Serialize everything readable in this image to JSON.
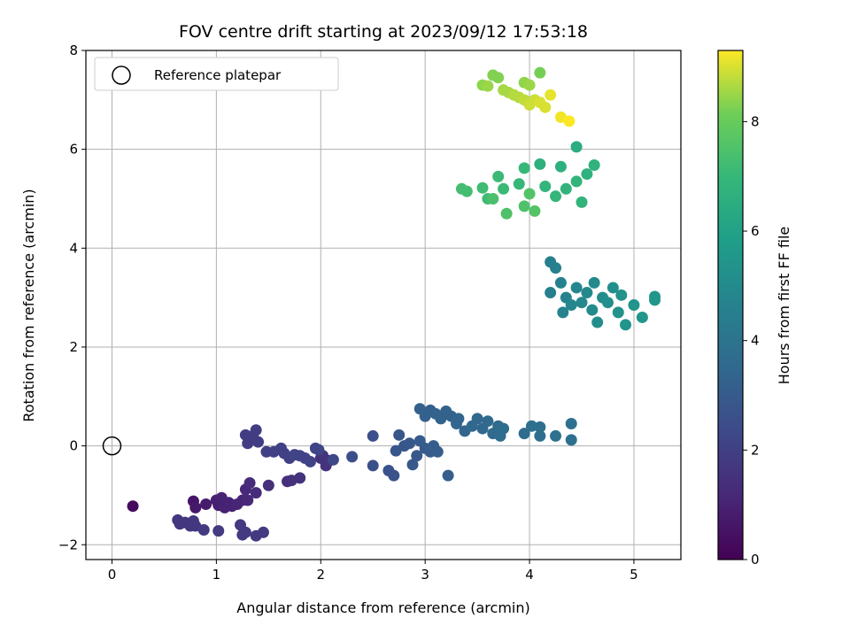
{
  "chart_data": {
    "type": "scatter",
    "title": "FOV centre drift starting at 2023/09/12 17:53:18",
    "xlabel": "Angular distance from reference (arcmin)",
    "ylabel": "Rotation from reference (arcmin)",
    "xlim": [
      -0.25,
      5.45
    ],
    "ylim": [
      -2.3,
      8.0
    ],
    "xticks": [
      0,
      1,
      2,
      3,
      4,
      5
    ],
    "yticks": [
      -2,
      0,
      2,
      4,
      6,
      8
    ],
    "grid": true,
    "legend": {
      "placement": "top-left",
      "entries": [
        "Reference platepar"
      ]
    },
    "reference_point": {
      "x": 0,
      "y": 0,
      "marker": "open-circle"
    },
    "colorbar": {
      "label": "Hours from first FF file",
      "colormap": "viridis",
      "range": [
        0,
        9.3
      ],
      "ticks": [
        0,
        2,
        4,
        6,
        8
      ]
    },
    "series": [
      {
        "color_by": "hours",
        "points": [
          {
            "x": 0.2,
            "y": -1.22,
            "h": 0.3
          },
          {
            "x": 0.78,
            "y": -1.12,
            "h": 0.6
          },
          {
            "x": 0.8,
            "y": -1.25,
            "h": 0.7
          },
          {
            "x": 0.9,
            "y": -1.18,
            "h": 0.8
          },
          {
            "x": 1.0,
            "y": -1.1,
            "h": 0.9
          },
          {
            "x": 1.02,
            "y": -1.2,
            "h": 0.9
          },
          {
            "x": 1.05,
            "y": -1.05,
            "h": 1.0
          },
          {
            "x": 1.08,
            "y": -1.25,
            "h": 1.0
          },
          {
            "x": 1.12,
            "y": -1.15,
            "h": 1.0
          },
          {
            "x": 1.15,
            "y": -1.22,
            "h": 1.0
          },
          {
            "x": 1.2,
            "y": -1.18,
            "h": 1.1
          },
          {
            "x": 1.25,
            "y": -1.1,
            "h": 1.1
          },
          {
            "x": 1.28,
            "y": -0.88,
            "h": 1.2
          },
          {
            "x": 1.3,
            "y": -1.1,
            "h": 1.2
          },
          {
            "x": 1.32,
            "y": -0.75,
            "h": 1.3
          },
          {
            "x": 1.38,
            "y": -0.95,
            "h": 1.3
          },
          {
            "x": 1.5,
            "y": -0.8,
            "h": 1.4
          },
          {
            "x": 1.68,
            "y": -0.72,
            "h": 1.4
          },
          {
            "x": 1.72,
            "y": -0.7,
            "h": 1.5
          },
          {
            "x": 1.8,
            "y": -0.65,
            "h": 1.5
          },
          {
            "x": 2.0,
            "y": -0.25,
            "h": 1.5
          },
          {
            "x": 2.02,
            "y": -0.2,
            "h": 1.5
          },
          {
            "x": 2.05,
            "y": -0.4,
            "h": 1.5
          },
          {
            "x": 2.08,
            "y": -0.3,
            "h": 1.6
          },
          {
            "x": 0.63,
            "y": -1.5,
            "h": 1.7
          },
          {
            "x": 0.65,
            "y": -1.58,
            "h": 1.7
          },
          {
            "x": 0.7,
            "y": -1.55,
            "h": 1.7
          },
          {
            "x": 0.75,
            "y": -1.62,
            "h": 1.7
          },
          {
            "x": 0.78,
            "y": -1.52,
            "h": 1.7
          },
          {
            "x": 0.8,
            "y": -1.62,
            "h": 1.7
          },
          {
            "x": 0.88,
            "y": -1.7,
            "h": 1.8
          },
          {
            "x": 1.02,
            "y": -1.72,
            "h": 1.8
          },
          {
            "x": 1.23,
            "y": -1.6,
            "h": 1.8
          },
          {
            "x": 1.25,
            "y": -1.8,
            "h": 1.8
          },
          {
            "x": 1.28,
            "y": -1.75,
            "h": 1.8
          },
          {
            "x": 1.38,
            "y": -1.82,
            "h": 1.8
          },
          {
            "x": 1.45,
            "y": -1.75,
            "h": 1.8
          },
          {
            "x": 1.28,
            "y": 0.22,
            "h": 1.9
          },
          {
            "x": 1.3,
            "y": 0.05,
            "h": 1.9
          },
          {
            "x": 1.35,
            "y": 0.2,
            "h": 1.9
          },
          {
            "x": 1.4,
            "y": 0.08,
            "h": 1.9
          },
          {
            "x": 1.38,
            "y": 0.32,
            "h": 1.9
          },
          {
            "x": 1.48,
            "y": -0.12,
            "h": 2.0
          },
          {
            "x": 1.55,
            "y": -0.12,
            "h": 2.0
          },
          {
            "x": 1.62,
            "y": -0.05,
            "h": 2.0
          },
          {
            "x": 1.65,
            "y": -0.15,
            "h": 2.0
          },
          {
            "x": 1.7,
            "y": -0.25,
            "h": 2.0
          },
          {
            "x": 1.75,
            "y": -0.18,
            "h": 2.1
          },
          {
            "x": 1.8,
            "y": -0.2,
            "h": 2.1
          },
          {
            "x": 1.85,
            "y": -0.25,
            "h": 2.1
          },
          {
            "x": 1.9,
            "y": -0.32,
            "h": 2.1
          },
          {
            "x": 1.95,
            "y": -0.05,
            "h": 2.2
          },
          {
            "x": 1.98,
            "y": -0.08,
            "h": 2.2
          },
          {
            "x": 2.12,
            "y": -0.28,
            "h": 2.3
          },
          {
            "x": 2.3,
            "y": -0.22,
            "h": 2.5
          },
          {
            "x": 2.5,
            "y": 0.2,
            "h": 2.6
          },
          {
            "x": 2.5,
            "y": -0.4,
            "h": 2.6
          },
          {
            "x": 2.65,
            "y": -0.5,
            "h": 2.7
          },
          {
            "x": 2.7,
            "y": -0.6,
            "h": 2.7
          },
          {
            "x": 2.72,
            "y": -0.1,
            "h": 2.8
          },
          {
            "x": 2.75,
            "y": 0.22,
            "h": 2.8
          },
          {
            "x": 2.8,
            "y": 0.0,
            "h": 2.8
          },
          {
            "x": 2.85,
            "y": 0.05,
            "h": 2.9
          },
          {
            "x": 2.88,
            "y": -0.38,
            "h": 2.9
          },
          {
            "x": 2.92,
            "y": -0.2,
            "h": 2.9
          },
          {
            "x": 2.95,
            "y": 0.1,
            "h": 3.0
          },
          {
            "x": 3.0,
            "y": -0.05,
            "h": 3.0
          },
          {
            "x": 3.05,
            "y": -0.12,
            "h": 3.0
          },
          {
            "x": 3.08,
            "y": 0.0,
            "h": 3.1
          },
          {
            "x": 3.12,
            "y": -0.12,
            "h": 3.1
          },
          {
            "x": 3.22,
            "y": -0.6,
            "h": 3.1
          },
          {
            "x": 2.95,
            "y": 0.75,
            "h": 3.2
          },
          {
            "x": 3.0,
            "y": 0.6,
            "h": 3.2
          },
          {
            "x": 3.05,
            "y": 0.72,
            "h": 3.2
          },
          {
            "x": 3.1,
            "y": 0.65,
            "h": 3.3
          },
          {
            "x": 3.15,
            "y": 0.55,
            "h": 3.3
          },
          {
            "x": 3.2,
            "y": 0.7,
            "h": 3.3
          },
          {
            "x": 3.25,
            "y": 0.6,
            "h": 3.3
          },
          {
            "x": 3.3,
            "y": 0.45,
            "h": 3.4
          },
          {
            "x": 3.32,
            "y": 0.55,
            "h": 3.4
          },
          {
            "x": 3.38,
            "y": 0.3,
            "h": 3.4
          },
          {
            "x": 3.45,
            "y": 0.4,
            "h": 3.5
          },
          {
            "x": 3.5,
            "y": 0.55,
            "h": 3.5
          },
          {
            "x": 3.55,
            "y": 0.35,
            "h": 3.5
          },
          {
            "x": 3.6,
            "y": 0.5,
            "h": 3.6
          },
          {
            "x": 3.65,
            "y": 0.25,
            "h": 3.6
          },
          {
            "x": 3.7,
            "y": 0.4,
            "h": 3.6
          },
          {
            "x": 3.72,
            "y": 0.2,
            "h": 3.7
          },
          {
            "x": 3.75,
            "y": 0.35,
            "h": 3.7
          },
          {
            "x": 3.95,
            "y": 0.25,
            "h": 3.7
          },
          {
            "x": 4.02,
            "y": 0.4,
            "h": 3.8
          },
          {
            "x": 4.1,
            "y": 0.2,
            "h": 3.8
          },
          {
            "x": 4.1,
            "y": 0.38,
            "h": 3.8
          },
          {
            "x": 4.25,
            "y": 0.2,
            "h": 3.9
          },
          {
            "x": 4.4,
            "y": 0.45,
            "h": 3.9
          },
          {
            "x": 4.4,
            "y": 0.12,
            "h": 3.9
          },
          {
            "x": 4.2,
            "y": 3.72,
            "h": 4.5
          },
          {
            "x": 4.2,
            "y": 3.1,
            "h": 4.5
          },
          {
            "x": 4.25,
            "y": 3.6,
            "h": 4.6
          },
          {
            "x": 4.3,
            "y": 3.3,
            "h": 4.6
          },
          {
            "x": 4.35,
            "y": 3.0,
            "h": 4.7
          },
          {
            "x": 4.32,
            "y": 2.7,
            "h": 4.7
          },
          {
            "x": 4.4,
            "y": 2.85,
            "h": 4.8
          },
          {
            "x": 4.45,
            "y": 3.2,
            "h": 4.8
          },
          {
            "x": 4.5,
            "y": 2.9,
            "h": 4.9
          },
          {
            "x": 4.55,
            "y": 3.1,
            "h": 4.9
          },
          {
            "x": 4.6,
            "y": 2.75,
            "h": 5.0
          },
          {
            "x": 4.62,
            "y": 3.3,
            "h": 5.0
          },
          {
            "x": 4.65,
            "y": 2.5,
            "h": 5.1
          },
          {
            "x": 4.7,
            "y": 3.0,
            "h": 5.1
          },
          {
            "x": 4.75,
            "y": 2.9,
            "h": 5.2
          },
          {
            "x": 4.8,
            "y": 3.2,
            "h": 5.2
          },
          {
            "x": 4.85,
            "y": 2.7,
            "h": 5.3
          },
          {
            "x": 4.88,
            "y": 3.05,
            "h": 5.3
          },
          {
            "x": 4.92,
            "y": 2.45,
            "h": 5.4
          },
          {
            "x": 5.0,
            "y": 2.85,
            "h": 5.4
          },
          {
            "x": 5.08,
            "y": 2.6,
            "h": 5.5
          },
          {
            "x": 5.2,
            "y": 2.95,
            "h": 5.5
          },
          {
            "x": 5.2,
            "y": 3.02,
            "h": 5.5
          },
          {
            "x": 4.45,
            "y": 6.05,
            "h": 6.5
          },
          {
            "x": 4.3,
            "y": 5.65,
            "h": 6.6
          },
          {
            "x": 4.1,
            "y": 5.7,
            "h": 6.6
          },
          {
            "x": 4.62,
            "y": 5.68,
            "h": 6.7
          },
          {
            "x": 4.55,
            "y": 5.5,
            "h": 6.7
          },
          {
            "x": 4.45,
            "y": 5.35,
            "h": 6.8
          },
          {
            "x": 4.35,
            "y": 5.2,
            "h": 6.8
          },
          {
            "x": 4.5,
            "y": 4.93,
            "h": 6.8
          },
          {
            "x": 4.25,
            "y": 5.05,
            "h": 6.9
          },
          {
            "x": 4.15,
            "y": 5.25,
            "h": 6.9
          },
          {
            "x": 3.95,
            "y": 5.62,
            "h": 7.0
          },
          {
            "x": 3.9,
            "y": 5.3,
            "h": 7.0
          },
          {
            "x": 3.75,
            "y": 5.2,
            "h": 7.1
          },
          {
            "x": 3.7,
            "y": 5.45,
            "h": 7.1
          },
          {
            "x": 3.6,
            "y": 5.0,
            "h": 7.2
          },
          {
            "x": 3.55,
            "y": 5.22,
            "h": 7.2
          },
          {
            "x": 3.4,
            "y": 5.15,
            "h": 7.3
          },
          {
            "x": 3.35,
            "y": 5.2,
            "h": 7.3
          },
          {
            "x": 3.65,
            "y": 5.0,
            "h": 7.4
          },
          {
            "x": 3.78,
            "y": 4.7,
            "h": 7.5
          },
          {
            "x": 3.95,
            "y": 4.85,
            "h": 7.5
          },
          {
            "x": 4.05,
            "y": 4.75,
            "h": 7.6
          },
          {
            "x": 4.0,
            "y": 5.1,
            "h": 7.6
          },
          {
            "x": 4.1,
            "y": 7.55,
            "h": 8.2
          },
          {
            "x": 3.65,
            "y": 7.5,
            "h": 8.3
          },
          {
            "x": 3.7,
            "y": 7.45,
            "h": 8.3
          },
          {
            "x": 3.55,
            "y": 7.3,
            "h": 8.4
          },
          {
            "x": 3.95,
            "y": 7.35,
            "h": 8.4
          },
          {
            "x": 4.0,
            "y": 7.3,
            "h": 8.5
          },
          {
            "x": 3.6,
            "y": 7.28,
            "h": 8.5
          },
          {
            "x": 3.75,
            "y": 7.2,
            "h": 8.6
          },
          {
            "x": 3.8,
            "y": 7.15,
            "h": 8.6
          },
          {
            "x": 3.85,
            "y": 7.1,
            "h": 8.7
          },
          {
            "x": 3.9,
            "y": 7.05,
            "h": 8.7
          },
          {
            "x": 3.95,
            "y": 7.0,
            "h": 8.8
          },
          {
            "x": 4.0,
            "y": 6.9,
            "h": 8.9
          },
          {
            "x": 4.05,
            "y": 7.0,
            "h": 8.9
          },
          {
            "x": 4.1,
            "y": 6.95,
            "h": 9.0
          },
          {
            "x": 4.15,
            "y": 6.85,
            "h": 9.0
          },
          {
            "x": 4.2,
            "y": 7.1,
            "h": 9.1
          },
          {
            "x": 4.3,
            "y": 6.65,
            "h": 9.2
          },
          {
            "x": 4.38,
            "y": 6.57,
            "h": 9.3
          }
        ]
      }
    ]
  }
}
